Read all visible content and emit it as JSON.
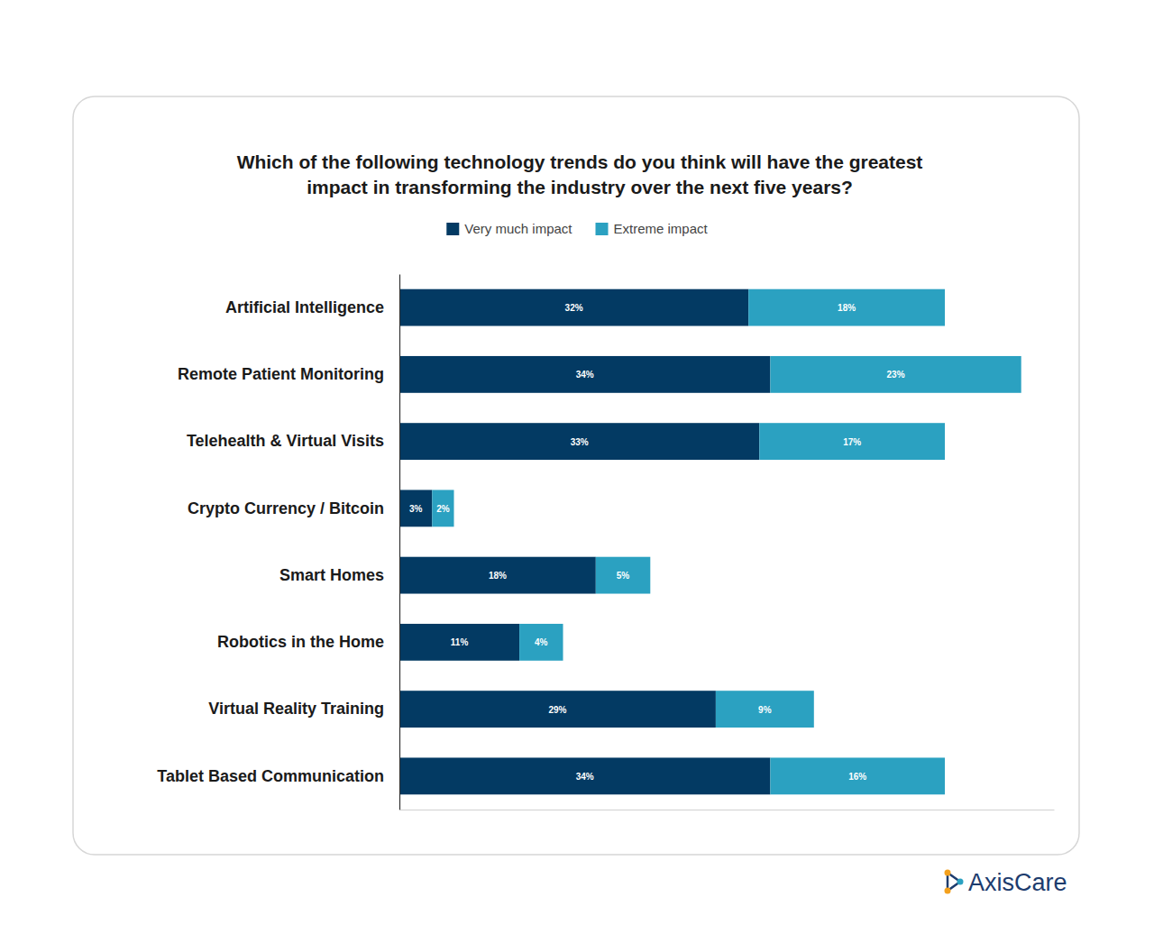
{
  "chart_data": {
    "type": "bar",
    "orientation": "horizontal",
    "stacked": true,
    "title": [
      "Which of the following technology trends do you think will have the greatest",
      "impact in transforming the industry over the next five years?"
    ],
    "categories": [
      "Artificial Intelligence",
      "Remote Patient Monitoring",
      "Telehealth & Virtual Visits",
      "Crypto Currency / Bitcoin",
      "Smart Homes",
      "Robotics in the Home",
      "Virtual Reality Training",
      "Tablet Based Communication"
    ],
    "series": [
      {
        "name": "Very much impact",
        "color": "#033a63",
        "values": [
          32,
          34,
          33,
          3,
          18,
          11,
          29,
          34
        ],
        "value_labels": [
          "32%",
          "34%",
          "33%",
          "3%",
          "18%",
          "11%",
          "29%",
          "34%"
        ]
      },
      {
        "name": "Extreme impact",
        "color": "#2ba1c1",
        "values": [
          18,
          23,
          17,
          2,
          5,
          4,
          9,
          16
        ],
        "value_labels": [
          "18%",
          "23%",
          "17%",
          "2%",
          "5%",
          "4%",
          "9%",
          "16%"
        ]
      }
    ],
    "xlim": [
      0,
      60
    ],
    "xticks": [],
    "grid": false,
    "legend": "top",
    "data_labels": true,
    "tick_labels": "y"
  },
  "logo_text": "AxisCare"
}
